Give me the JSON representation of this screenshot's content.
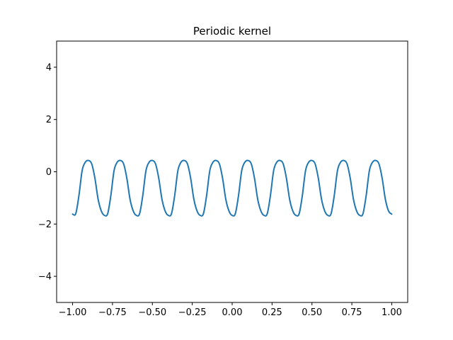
{
  "chart_data": {
    "type": "line",
    "title": "Periodic kernel",
    "xlabel": "",
    "ylabel": "",
    "xlim": [
      -1.1,
      1.1
    ],
    "ylim": [
      -5,
      5
    ],
    "xticks": [
      -1.0,
      -0.75,
      -0.5,
      -0.25,
      0.0,
      0.25,
      0.5,
      0.75,
      1.0
    ],
    "xtick_labels": [
      "−1.00",
      "−0.75",
      "−0.50",
      "−0.25",
      "0.00",
      "0.25",
      "0.50",
      "0.75",
      "1.00"
    ],
    "yticks": [
      -4,
      -2,
      0,
      2,
      4
    ],
    "ytick_labels": [
      "−4",
      "−2",
      "0",
      "2",
      "4"
    ],
    "grid": false,
    "series": [
      {
        "color": "#1f77b4",
        "period": 0.2,
        "peak_x": -0.9,
        "x": [
          -1.0,
          -0.98,
          -0.96,
          -0.94,
          -0.92,
          -0.9,
          -0.88,
          -0.86,
          -0.84,
          -0.82,
          -0.8,
          -0.78,
          -0.76,
          -0.74,
          -0.72,
          -0.7,
          -0.68,
          -0.66,
          -0.64,
          -0.62,
          -0.6,
          -0.58,
          -0.56,
          -0.54,
          -0.52,
          -0.5,
          -0.48,
          -0.46,
          -0.44,
          -0.42,
          -0.4,
          -0.38,
          -0.36,
          -0.34,
          -0.32,
          -0.3,
          -0.28,
          -0.26,
          -0.24,
          -0.22,
          -0.2,
          -0.18,
          -0.16,
          -0.14,
          -0.12,
          -0.1,
          -0.08,
          -0.06,
          -0.04,
          -0.02,
          0.0,
          0.02,
          0.04,
          0.06,
          0.08,
          0.1,
          0.12,
          0.14,
          0.16,
          0.18,
          0.2,
          0.22,
          0.24,
          0.26,
          0.28,
          0.3,
          0.32,
          0.34,
          0.36,
          0.38,
          0.4,
          0.42,
          0.44,
          0.46,
          0.48,
          0.5,
          0.52,
          0.54,
          0.56,
          0.58,
          0.6,
          0.62,
          0.64,
          0.66,
          0.68,
          0.7,
          0.72,
          0.74,
          0.76,
          0.78,
          0.8,
          0.82,
          0.84,
          0.86,
          0.88,
          0.9,
          0.92,
          0.94,
          0.96,
          0.98,
          1.0
        ],
        "y": [
          -1.62,
          -1.6,
          -0.9,
          0.05,
          0.37,
          0.43,
          0.3,
          -0.25,
          -1.05,
          -1.5,
          -1.67,
          -1.6,
          -0.9,
          0.05,
          0.37,
          0.43,
          0.3,
          -0.25,
          -1.05,
          -1.5,
          -1.67,
          -1.6,
          -0.9,
          0.05,
          0.37,
          0.43,
          0.3,
          -0.25,
          -1.05,
          -1.5,
          -1.67,
          -1.6,
          -0.9,
          0.05,
          0.37,
          0.43,
          0.3,
          -0.25,
          -1.05,
          -1.5,
          -1.67,
          -1.6,
          -0.9,
          0.05,
          0.37,
          0.43,
          0.3,
          -0.25,
          -1.05,
          -1.5,
          -1.67,
          -1.6,
          -0.9,
          0.05,
          0.37,
          0.43,
          0.3,
          -0.25,
          -1.05,
          -1.5,
          -1.67,
          -1.6,
          -0.9,
          0.05,
          0.37,
          0.43,
          0.3,
          -0.25,
          -1.05,
          -1.5,
          -1.67,
          -1.6,
          -0.9,
          0.05,
          0.37,
          0.43,
          0.3,
          -0.25,
          -1.05,
          -1.5,
          -1.67,
          -1.6,
          -0.9,
          0.05,
          0.37,
          0.43,
          0.3,
          -0.25,
          -1.05,
          -1.5,
          -1.67,
          -1.6,
          -0.9,
          0.05,
          0.37,
          0.43,
          0.3,
          -0.25,
          -1.05,
          -1.5,
          -1.62
        ]
      }
    ]
  }
}
